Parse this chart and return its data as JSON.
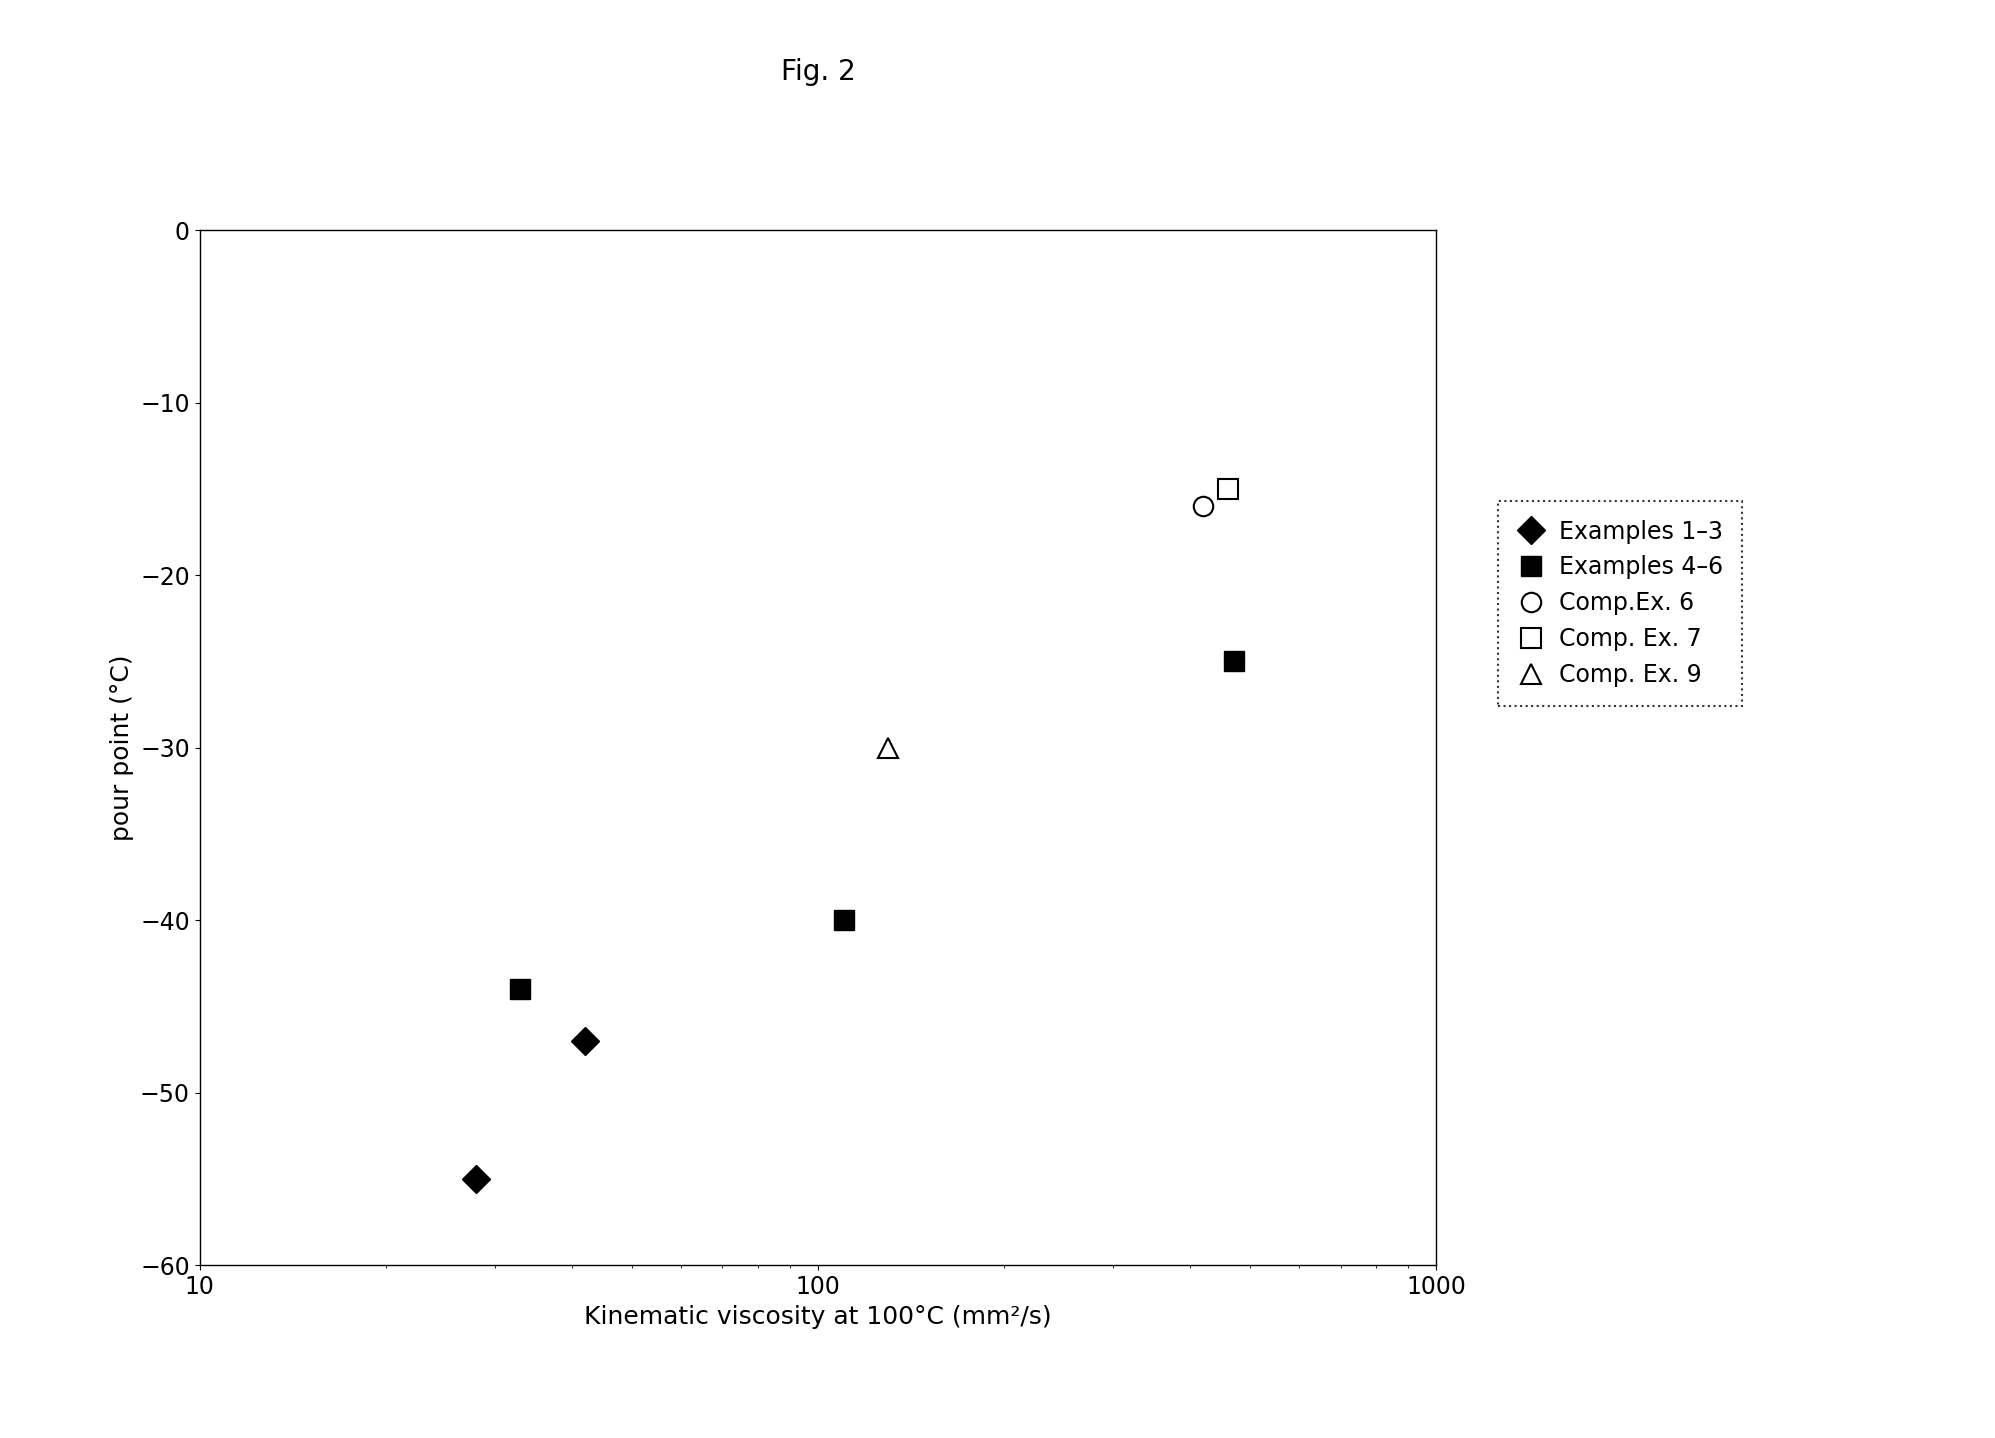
{
  "title": "Fig. 2",
  "xlabel": "Kinematic viscosity at 100°C (mm²/s)",
  "ylabel": "pour point (°C)",
  "xlim": [
    10,
    1000
  ],
  "ylim": [
    -60,
    0
  ],
  "yticks": [
    0,
    -10,
    -20,
    -30,
    -40,
    -50,
    -60
  ],
  "background_color": "#ffffff",
  "series": [
    {
      "label": "Examples 1–3",
      "marker": "D",
      "color": "black",
      "filled": true,
      "markersize": 14,
      "points": [
        [
          28,
          -55
        ],
        [
          42,
          -47
        ]
      ]
    },
    {
      "label": "Examples 4–6",
      "marker": "s",
      "color": "black",
      "filled": true,
      "markersize": 14,
      "points": [
        [
          33,
          -44
        ],
        [
          110,
          -40
        ],
        [
          470,
          -25
        ]
      ]
    },
    {
      "label": "Comp.Ex. 6",
      "marker": "o",
      "color": "black",
      "filled": false,
      "markersize": 14,
      "points": [
        [
          420,
          -16
        ]
      ]
    },
    {
      "label": "Comp. Ex. 7",
      "marker": "s",
      "color": "black",
      "filled": false,
      "markersize": 14,
      "points": [
        [
          460,
          -15
        ]
      ]
    },
    {
      "label": "Comp. Ex. 9",
      "marker": "^",
      "color": "black",
      "filled": false,
      "markersize": 14,
      "points": [
        [
          130,
          -30
        ]
      ]
    }
  ],
  "title_fontsize": 20,
  "label_fontsize": 18,
  "tick_fontsize": 17,
  "legend_fontsize": 17
}
